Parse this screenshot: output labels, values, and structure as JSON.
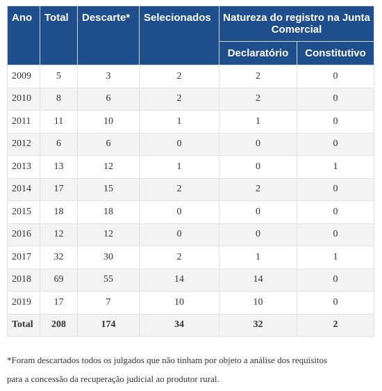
{
  "header": {
    "columns": [
      "Ano",
      "Total",
      "Descarte*",
      "Selecionados"
    ],
    "group": "Natureza do registro na Junta Comercial",
    "subcolumns": [
      "Declaratório",
      "Constitutivo"
    ]
  },
  "table": {
    "rows": [
      [
        2009,
        5,
        3,
        2,
        2,
        0
      ],
      [
        2010,
        8,
        6,
        2,
        2,
        0
      ],
      [
        2011,
        11,
        10,
        1,
        1,
        0
      ],
      [
        2012,
        6,
        6,
        0,
        0,
        0
      ],
      [
        2013,
        13,
        12,
        1,
        0,
        1
      ],
      [
        2014,
        17,
        15,
        2,
        2,
        0
      ],
      [
        2015,
        18,
        18,
        0,
        0,
        0
      ],
      [
        2016,
        12,
        12,
        0,
        0,
        0
      ],
      [
        2017,
        32,
        30,
        2,
        1,
        1
      ],
      [
        2018,
        69,
        55,
        14,
        14,
        0
      ],
      [
        2019,
        17,
        7,
        10,
        10,
        0
      ]
    ],
    "total": [
      "Total",
      208,
      174,
      34,
      32,
      2
    ]
  },
  "footnote": [
    "*Foram descartados todos os julgados que não tinham por objeto a análise dos requisitos",
    "para a concessão da recuperação judicial ao produtor rural."
  ]
}
